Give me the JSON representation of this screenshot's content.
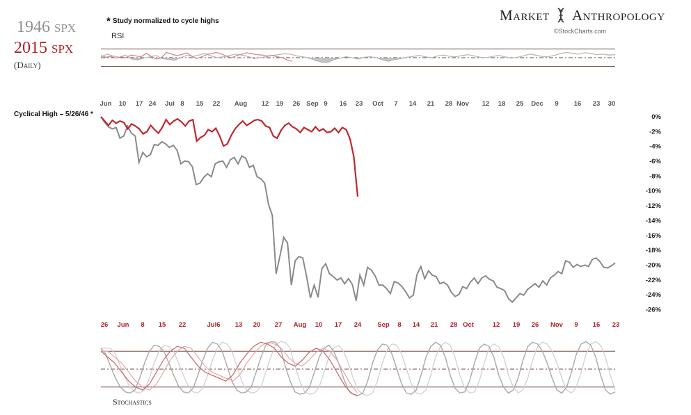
{
  "header": {
    "label_1946": "1946",
    "label_1946_suffix": "SPX",
    "label_2015": "2015",
    "label_2015_suffix": "SPX",
    "daily": "(Daily)",
    "note_marker": "*",
    "note": "Study normalized to cycle highs",
    "brand_left": "Market",
    "brand_right": "Anthropology",
    "credit": "©StockCharts.com",
    "rsi_label": "RSI",
    "cycle_label": "Cyclical High – 5/26/46 *",
    "stochastics_label": "Stochastics"
  },
  "colors": {
    "series_1946": "#8a8a8a",
    "series_2015": "#c1272d",
    "band_line": "#6b4a40",
    "axis_1946": "#555555",
    "axis_2015": "#b01e24"
  },
  "chart_data": [
    {
      "type": "line",
      "name": "rsi-panel",
      "title": "RSI",
      "series": [
        {
          "name": "1946 SPX",
          "values": [
            52,
            58,
            54,
            51,
            56,
            47,
            45,
            49,
            52,
            55,
            48,
            46,
            44,
            50,
            55,
            53,
            56,
            60,
            54,
            50,
            52,
            55,
            58,
            56,
            53,
            48,
            50,
            52,
            55,
            57,
            59,
            58,
            54,
            52,
            49,
            44,
            40,
            39,
            45,
            49,
            52,
            50,
            47,
            51,
            52,
            50,
            45,
            42,
            46,
            48,
            51,
            53,
            55,
            52,
            50,
            54,
            56,
            53,
            52,
            55,
            57,
            54,
            51,
            50,
            53,
            55,
            52,
            49,
            51,
            54,
            58,
            56,
            53,
            52,
            55,
            59,
            62,
            60,
            58,
            61,
            60,
            57,
            58,
            56,
            57
          ]
        },
        {
          "name": "2015 SPX",
          "values": [
            55,
            51,
            53,
            49,
            52,
            50,
            56,
            54,
            52,
            60,
            53,
            47,
            50,
            62,
            58,
            55,
            57,
            61,
            54,
            48,
            52,
            57,
            60,
            62,
            58,
            53,
            50,
            55,
            58,
            61,
            59,
            57,
            56,
            54,
            55,
            52,
            50,
            45,
            42
          ]
        }
      ],
      "bands": [
        70,
        50,
        30
      ],
      "ylim": [
        20,
        80
      ]
    },
    {
      "type": "line",
      "name": "price-panel",
      "ylabel": "",
      "y_ticks": [
        "0%",
        "-2%",
        "-4%",
        "-6%",
        "-8%",
        "-10%",
        "-12%",
        "-14%",
        "-16%",
        "-18%",
        "-20%",
        "-22%",
        "-24%",
        "-26%"
      ],
      "ylim": [
        -27,
        0
      ],
      "x_ticks_1946": [
        "Jun",
        "10",
        "17",
        "24",
        "Jul",
        "8",
        "15",
        "22",
        "Aug",
        "12",
        "19",
        "26",
        "Sep",
        "9",
        "16",
        "23",
        "Oct",
        "7",
        "14",
        "21",
        "28",
        "Nov",
        "12",
        "18",
        "25",
        "Dec",
        "9",
        "16",
        "23",
        "30"
      ],
      "x_ticks_2015": [
        "26",
        "Jun",
        "8",
        "15",
        "22",
        "Jul6",
        "13",
        "20",
        "27",
        "Aug",
        "10",
        "17",
        "24",
        "Sep",
        "8",
        "14",
        "21",
        "28",
        "Oct",
        "12",
        "19",
        "26",
        "Nov",
        "9",
        "16",
        "23"
      ],
      "series": [
        {
          "name": "1946 SPX",
          "values": [
            0,
            -0.8,
            -1.4,
            -1.7,
            -1.5,
            -3.0,
            -2.7,
            -1.3,
            -2.3,
            -2.7,
            -6.4,
            -5.0,
            -5.6,
            -5.3,
            -3.9,
            -4.0,
            -3.5,
            -3.8,
            -4.3,
            -4.0,
            -4.7,
            -6.6,
            -6.2,
            -6.3,
            -7.0,
            -9.5,
            -9.3,
            -8.5,
            -8.0,
            -8.4,
            -6.6,
            -6.3,
            -6.2,
            -7.1,
            -6.0,
            -5.7,
            -6.6,
            -5.5,
            -5.8,
            -7.1,
            -6.8,
            -8.4,
            -8.7,
            -9.3,
            -12.3,
            -13.8,
            -22.0,
            -19.5,
            -16.9,
            -17.7,
            -23.6,
            -20.2,
            -19.6,
            -19.8,
            -22.4,
            -25.4,
            -23.6,
            -25.3,
            -21.3,
            -20.6,
            -22.0,
            -22.4,
            -22.9,
            -22.6,
            -23.4,
            -22.7,
            -23.5,
            -25.8,
            -22.2,
            -23.6,
            -21.1,
            -21.5,
            -22.3,
            -23.6,
            -23.6,
            -24.1,
            -24.8,
            -23.1,
            -23.3,
            -23.8,
            -24.5,
            -25.4,
            -25.0,
            -22.1,
            -21.0,
            -22.7,
            -21.6,
            -22.2,
            -22.4,
            -23.4,
            -23.2,
            -23.6,
            -24.6,
            -25.2,
            -24.9,
            -23.8,
            -24.1,
            -23.2,
            -22.6,
            -23.4,
            -22.6,
            -22.3,
            -22.8,
            -23.0,
            -23.9,
            -24.1,
            -24.4,
            -25.5,
            -26.0,
            -25.4,
            -24.8,
            -25.0,
            -24.2,
            -23.8,
            -23.4,
            -23.9,
            -23.0,
            -23.6,
            -22.6,
            -22.2,
            -21.7,
            -22.0,
            -20.2,
            -20.4,
            -21.1,
            -20.7,
            -21.0,
            -20.8,
            -21.0,
            -20.0,
            -19.8,
            -20.3,
            -21.1,
            -21.2,
            -20.9,
            -20.5
          ]
        },
        {
          "name": "2015 SPX",
          "values": [
            0,
            -0.6,
            -1.2,
            -0.5,
            -0.9,
            -0.6,
            -0.8,
            -1.7,
            -1.0,
            -1.3,
            -1.7,
            -2.4,
            -2.1,
            -1.2,
            -1.8,
            -2.3,
            -1.5,
            -0.4,
            -1.1,
            -0.6,
            -0.3,
            -0.7,
            -1.3,
            -0.6,
            -0.4,
            -3.4,
            -2.9,
            -2.6,
            -1.8,
            -2.1,
            -1.6,
            -2.7,
            -4.1,
            -3.8,
            -2.6,
            -1.7,
            -1.1,
            -0.6,
            -1.2,
            -0.9,
            -0.5,
            -0.4,
            -0.6,
            -1.3,
            -1.5,
            -2.7,
            -3.0,
            -1.9,
            -1.2,
            -0.9,
            -1.4,
            -1.7,
            -2.2,
            -1.5,
            -1.8,
            -2.1,
            -1.4,
            -2.0,
            -1.7,
            -2.2,
            -2.1,
            -1.6,
            -2.2,
            -1.5,
            -1.8,
            -3.1,
            -5.6,
            -11.2
          ]
        }
      ]
    },
    {
      "type": "line",
      "name": "stochastics-panel",
      "title": "Stochastics",
      "series": [
        {
          "name": "1946 SPX",
          "values": [
            85,
            75,
            55,
            35,
            20,
            12,
            10,
            15,
            35,
            60,
            80,
            90,
            88,
            80,
            60,
            40,
            22,
            12,
            10,
            18,
            40,
            65,
            85,
            95,
            92,
            80,
            55,
            30,
            15,
            10,
            12,
            20,
            45,
            70,
            90,
            96,
            95,
            85,
            55,
            30,
            12,
            8,
            10,
            20,
            45,
            70,
            85,
            90,
            80,
            60,
            35,
            15,
            8,
            6,
            10,
            30,
            60,
            82,
            92,
            90,
            75,
            50,
            25,
            10,
            8,
            15,
            40,
            70,
            88,
            95,
            90,
            70,
            40,
            18,
            10,
            12,
            30,
            60,
            85,
            92,
            88,
            70,
            40,
            20,
            10,
            15,
            35,
            65,
            88,
            95,
            92,
            80,
            60,
            35,
            15,
            10,
            20,
            45,
            75,
            92,
            96,
            90,
            70,
            40,
            15,
            8,
            12
          ]
        },
        {
          "name": "2015 SPX",
          "values": [
            80,
            70,
            60,
            45,
            30,
            20,
            15,
            25,
            45,
            65,
            80,
            88,
            85,
            70,
            55,
            45,
            40,
            35,
            30,
            40,
            60,
            75,
            88,
            95,
            92,
            85,
            70,
            60,
            55,
            65,
            78,
            85,
            80,
            65,
            45,
            25,
            10,
            5
          ]
        }
      ],
      "bands": [
        80,
        50,
        20
      ],
      "ylim": [
        0,
        100
      ]
    }
  ]
}
